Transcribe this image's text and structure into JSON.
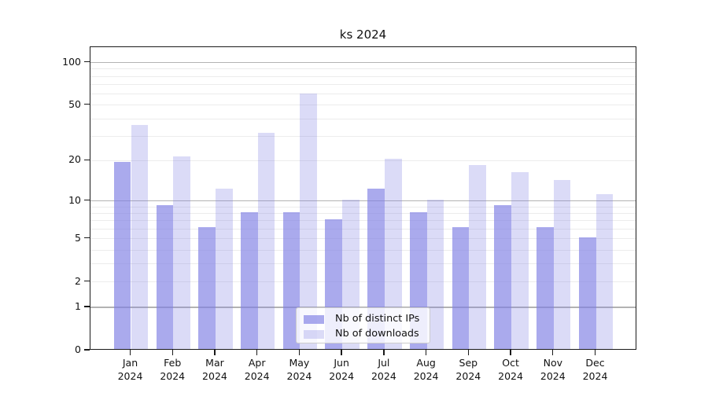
{
  "chart_data": {
    "type": "bar",
    "title": "ks 2024",
    "categories": [
      "Jan",
      "Feb",
      "Mar",
      "Apr",
      "May",
      "Jun",
      "Jul",
      "Aug",
      "Sep",
      "Oct",
      "Nov",
      "Dec"
    ],
    "x_tick_year": "2024",
    "series": [
      {
        "name": "Nb of distinct IPs",
        "color": "rgba(126,126,228,0.66)",
        "values": [
          19,
          9,
          6,
          8,
          8,
          7,
          12,
          8,
          6,
          9,
          6,
          5
        ]
      },
      {
        "name": "Nb of downloads",
        "color": "rgba(126,126,228,0.28)",
        "values": [
          35,
          21,
          12,
          31,
          59,
          10,
          20,
          10,
          18,
          16,
          14,
          11
        ]
      }
    ],
    "y_axis": {
      "scale": "symlog-log1p",
      "ticks": [
        0,
        1,
        2,
        5,
        10,
        20,
        50,
        100
      ],
      "major_gridlines": [
        1,
        10,
        100
      ],
      "minor_gridlines": [
        2,
        3,
        4,
        5,
        6,
        7,
        8,
        9,
        20,
        30,
        40,
        50,
        60,
        70,
        80,
        90
      ],
      "ylim": [
        0,
        133
      ]
    },
    "legend": {
      "position": "bottom-center"
    },
    "grid": true
  },
  "colors": {
    "axis": "#1a1a1a",
    "major_grid": "#b3b3b3",
    "minor_grid": "#ececec",
    "legend_border": "#cccccc",
    "legend_bg": "rgba(255,255,255,0.8)",
    "bar_base": "#7e7ee4"
  }
}
